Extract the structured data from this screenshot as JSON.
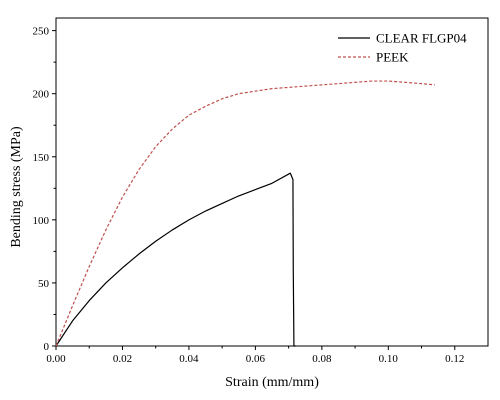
{
  "chart_data": {
    "type": "line",
    "title": "",
    "xlabel": "Strain (mm/mm)",
    "ylabel": "Bending stress (MPa)",
    "xlim": [
      0,
      0.13
    ],
    "ylim": [
      0,
      260
    ],
    "xticks": [
      0.0,
      0.02,
      0.04,
      0.06,
      0.08,
      0.1,
      0.12
    ],
    "xtick_labels": [
      "0.00",
      "0.02",
      "0.04",
      "0.06",
      "0.08",
      "0.10",
      "0.12"
    ],
    "yticks": [
      0,
      50,
      100,
      150,
      200,
      250
    ],
    "ytick_labels": [
      "0",
      "50",
      "100",
      "150",
      "200",
      "250"
    ],
    "grid": false,
    "legend_position": "top-right",
    "series": [
      {
        "name": "CLEAR FLGP04",
        "color": "#000000",
        "style": "solid",
        "x": [
          0.0,
          0.005,
          0.01,
          0.015,
          0.02,
          0.025,
          0.03,
          0.035,
          0.04,
          0.045,
          0.05,
          0.055,
          0.06,
          0.065,
          0.0705,
          0.0713,
          0.0714,
          0.0716,
          0.0718,
          0.0722
        ],
        "y": [
          0,
          20,
          36,
          50,
          62,
          73,
          83,
          92,
          100,
          107,
          113,
          119,
          124,
          129,
          137,
          132,
          60,
          0,
          0,
          0
        ]
      },
      {
        "name": "PEEK",
        "color": "#c0504d",
        "style": "dashed",
        "x": [
          0.0,
          0.005,
          0.01,
          0.015,
          0.02,
          0.025,
          0.03,
          0.035,
          0.04,
          0.045,
          0.05,
          0.055,
          0.06,
          0.065,
          0.07,
          0.075,
          0.08,
          0.085,
          0.09,
          0.095,
          0.1,
          0.105,
          0.11,
          0.114
        ],
        "y": [
          0,
          32,
          63,
          92,
          118,
          140,
          158,
          172,
          183,
          190,
          196,
          200,
          202,
          204,
          205,
          206,
          207,
          208,
          209,
          210,
          210,
          209,
          208,
          207
        ]
      }
    ]
  }
}
